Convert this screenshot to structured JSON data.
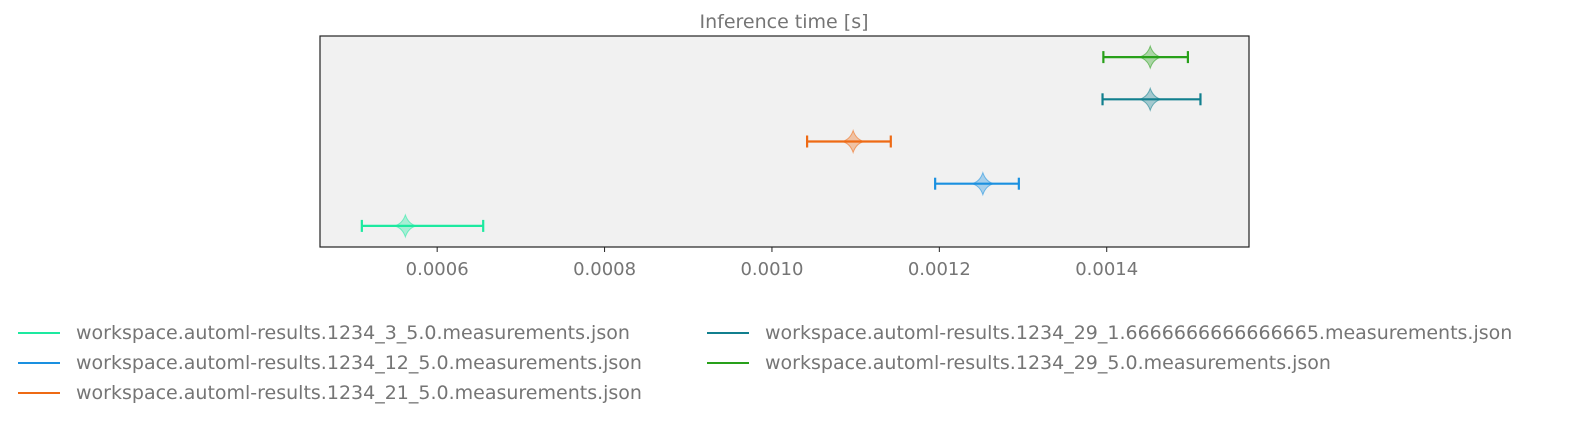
{
  "chart_data": {
    "type": "violin",
    "title": "Inference time [s]",
    "xlabel": "",
    "ylabel": "",
    "xlim": [
      0.00046,
      0.00157
    ],
    "x_ticks": [
      0.0006,
      0.0008,
      0.001,
      0.0012,
      0.0014
    ],
    "x_tick_labels": [
      "0.0006",
      "0.0008",
      "0.0010",
      "0.0012",
      "0.0014"
    ],
    "grid": false,
    "background": "#f1f1f1",
    "legend_position": "bottom",
    "series": [
      {
        "name": "workspace.automl-results.1234_3_5.0.measurements.json",
        "color": "#1de9a0",
        "center": 0.000562,
        "min": 0.00051,
        "max": 0.000655
      },
      {
        "name": "workspace.automl-results.1234_12_5.0.measurements.json",
        "color": "#1a90e0",
        "center": 0.001252,
        "min": 0.001195,
        "max": 0.001295
      },
      {
        "name": "workspace.automl-results.1234_21_5.0.measurements.json",
        "color": "#ee6a14",
        "center": 0.001097,
        "min": 0.001042,
        "max": 0.001142
      },
      {
        "name": "workspace.automl-results.1234_29_1.6666666666666665.measurements.json",
        "color": "#117f8e",
        "center": 0.001452,
        "min": 0.001395,
        "max": 0.001512
      },
      {
        "name": "workspace.automl-results.1234_29_5.0.measurements.json",
        "color": "#28a01a",
        "center": 0.001452,
        "min": 0.001396,
        "max": 0.001497
      }
    ]
  }
}
